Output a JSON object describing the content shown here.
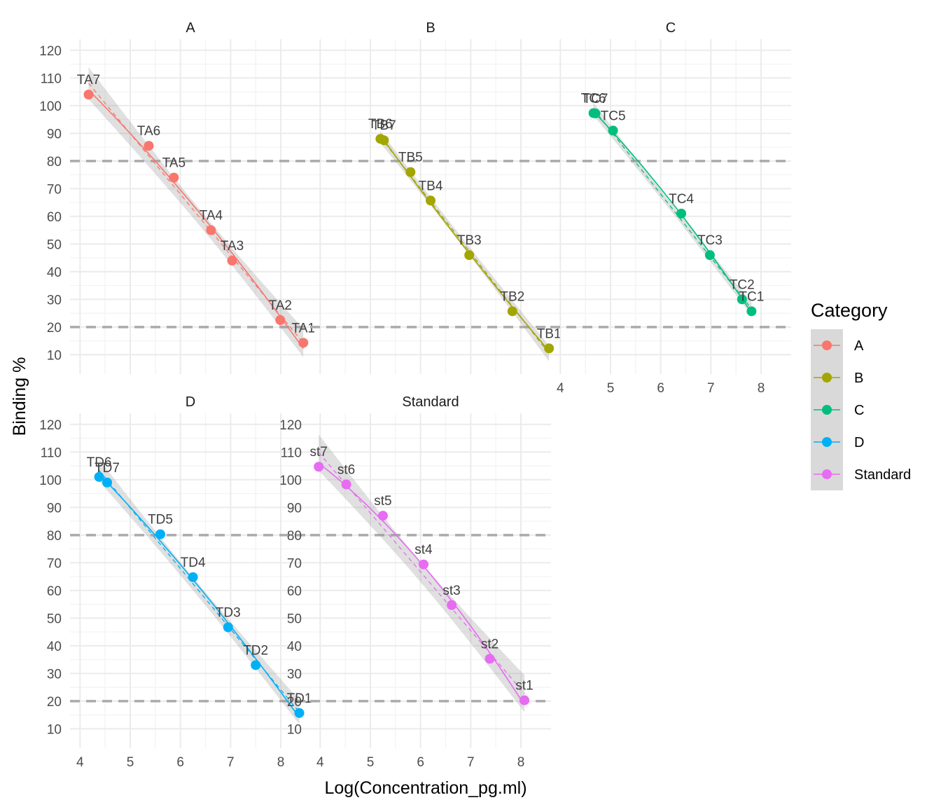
{
  "chart_data": {
    "type": "scatter",
    "xlabel": "Log(Concentration_pg.ml)",
    "ylabel": "Binding %",
    "xlim": [
      3.8,
      8.6
    ],
    "ylim": [
      3,
      124
    ],
    "xticks": [
      4,
      5,
      6,
      7,
      8
    ],
    "yticks": [
      10,
      20,
      30,
      40,
      50,
      60,
      70,
      80,
      90,
      100,
      110,
      120
    ],
    "reference_lines_y": [
      20,
      80
    ],
    "legend": {
      "title": "Category",
      "position": "right",
      "entries": [
        "A",
        "B",
        "C",
        "D",
        "Standard"
      ]
    },
    "colors": {
      "A": "#F8766D",
      "B": "#A3A500",
      "C": "#00BF7D",
      "D": "#00B0F6",
      "Standard": "#E76BF3"
    },
    "panels": [
      {
        "name": "A",
        "points": [
          {
            "label": "TA7",
            "x": 4.17,
            "y": 104
          },
          {
            "label": "TA6",
            "x": 5.37,
            "y": 85.5
          },
          {
            "label": "TA5",
            "x": 5.87,
            "y": 74
          },
          {
            "label": "TA4",
            "x": 6.61,
            "y": 55
          },
          {
            "label": "TA3",
            "x": 7.03,
            "y": 44
          },
          {
            "label": "TA2",
            "x": 7.99,
            "y": 22.5
          },
          {
            "label": "TA1",
            "x": 8.45,
            "y": 14.3
          }
        ]
      },
      {
        "name": "B",
        "points": [
          {
            "label": "TB6",
            "x": 5.2,
            "y": 88
          },
          {
            "label": "TB7",
            "x": 5.27,
            "y": 87.5
          },
          {
            "label": "TB5",
            "x": 5.8,
            "y": 76
          },
          {
            "label": "TB4",
            "x": 6.2,
            "y": 65.7
          },
          {
            "label": "TB3",
            "x": 6.97,
            "y": 46
          },
          {
            "label": "TB2",
            "x": 7.83,
            "y": 25.7
          },
          {
            "label": "TB1",
            "x": 8.56,
            "y": 12.3
          }
        ]
      },
      {
        "name": "C",
        "points": [
          {
            "label": "TC6",
            "x": 4.66,
            "y": 97.3
          },
          {
            "label": "TC7",
            "x": 4.7,
            "y": 97.2
          },
          {
            "label": "TC5",
            "x": 5.05,
            "y": 91
          },
          {
            "label": "TC4",
            "x": 6.41,
            "y": 61
          },
          {
            "label": "TC3",
            "x": 6.98,
            "y": 46
          },
          {
            "label": "TC2",
            "x": 7.62,
            "y": 30
          },
          {
            "label": "TC1",
            "x": 7.81,
            "y": 25.7
          }
        ]
      },
      {
        "name": "D",
        "points": [
          {
            "label": "TD6",
            "x": 4.38,
            "y": 101
          },
          {
            "label": "TD7",
            "x": 4.54,
            "y": 99
          },
          {
            "label": "TD5",
            "x": 5.6,
            "y": 80.3
          },
          {
            "label": "TD4",
            "x": 6.25,
            "y": 64.8
          },
          {
            "label": "TD3",
            "x": 6.95,
            "y": 46.7
          },
          {
            "label": "TD2",
            "x": 7.5,
            "y": 33
          },
          {
            "label": "TD1",
            "x": 8.37,
            "y": 15.7
          }
        ]
      },
      {
        "name": "Standard",
        "points": [
          {
            "label": "st7",
            "x": 3.97,
            "y": 104.7
          },
          {
            "label": "st6",
            "x": 4.52,
            "y": 98.3
          },
          {
            "label": "st5",
            "x": 5.25,
            "y": 87
          },
          {
            "label": "st4",
            "x": 6.06,
            "y": 69.4
          },
          {
            "label": "st3",
            "x": 6.62,
            "y": 54.7
          },
          {
            "label": "st2",
            "x": 7.38,
            "y": 35.3
          },
          {
            "label": "st1",
            "x": 8.07,
            "y": 20.3
          }
        ]
      }
    ]
  }
}
